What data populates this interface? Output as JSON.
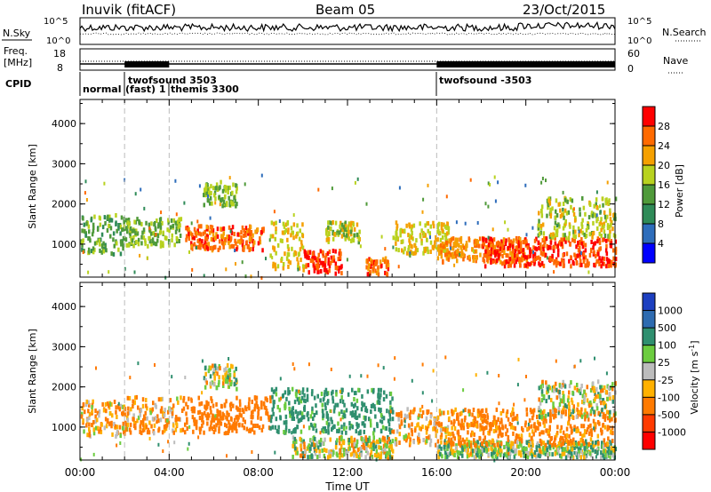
{
  "header": {
    "station": "Inuvik (fitACF)",
    "beam": "Beam 05",
    "date": "23/Oct/2015"
  },
  "status_panels": {
    "nsky": {
      "label": "N.Sky",
      "ticks": [
        "10^5",
        "10^0"
      ],
      "right_label": "N.Search",
      "right_ticks": [
        "10^5",
        "10^0"
      ]
    },
    "freq": {
      "label_line1": "Freq.",
      "label_line2": "[MHz]",
      "ticks": [
        "18",
        "8"
      ],
      "right_label": "Nave",
      "right_ticks": [
        "60",
        "0"
      ]
    },
    "cpid": {
      "label": "CPID",
      "modes": [
        {
          "name": "normal",
          "start_hour": 0.0
        },
        {
          "name": "twofsound 3503",
          "start_hour": 2.0
        },
        {
          "name": "(fast) 1",
          "start_hour": 2.0
        },
        {
          "name": "themis 3300",
          "start_hour": 4.0
        },
        {
          "name": "twofsound -3503",
          "start_hour": 16.0
        }
      ]
    }
  },
  "x_axis": {
    "title": "Time UT",
    "tick_labels": [
      "00:00",
      "04:00",
      "08:00",
      "12:00",
      "16:00",
      "20:00",
      "00:00"
    ],
    "range_hours": [
      0,
      24
    ],
    "mode_change_hours": [
      2,
      4,
      16
    ]
  },
  "power_panel": {
    "ylabel": "Slant Range [km]",
    "y_ticks": [
      "1000",
      "2000",
      "3000",
      "4000"
    ],
    "colorbar_title": "Power [dB]",
    "colorbar_ticks": [
      "4",
      "8",
      "12",
      "16",
      "20",
      "24",
      "28"
    ],
    "colorbar_colors": [
      "#0000ff",
      "#2e6dbb",
      "#2f8b58",
      "#4f9a3a",
      "#b8d21f",
      "#f5a000",
      "#ff6a00",
      "#ff0000"
    ]
  },
  "velocity_panel": {
    "ylabel": "Slant Range [km]",
    "y_ticks": [
      "1000",
      "2000",
      "3000",
      "4000"
    ],
    "colorbar_title": "Velocity  [m s",
    "colorbar_superscript": "-1",
    "colorbar_ticks": [
      "1000",
      "500",
      "100",
      "25",
      "-25",
      "-100",
      "-500",
      "-1000"
    ],
    "colorbar_colors": [
      "#1c3fc0",
      "#2e6bb0",
      "#2f8f6f",
      "#6ccc3f",
      "#bcbcbc",
      "#ffb100",
      "#ff7a00",
      "#ff3a00",
      "#ff0000"
    ]
  },
  "chart_data": {
    "type": "heatmap",
    "title": "Inuvik (fitACF)   Beam 05   23/Oct/2015",
    "xlabel": "Time UT",
    "ylabel": "Slant Range [km]",
    "xlim_hours": [
      0,
      24
    ],
    "ylim_km": [
      180,
      4600
    ],
    "grid": false,
    "mode_changes_hours": [
      2,
      4,
      16
    ],
    "power_scatter_regions": [
      {
        "t0": 0.0,
        "t1": 2.0,
        "r0": 800,
        "r1": 1800,
        "dB": 14
      },
      {
        "t0": 2.0,
        "t1": 4.5,
        "r0": 1000,
        "r1": 1700,
        "dB": 16
      },
      {
        "t0": 4.7,
        "t1": 8.2,
        "r0": 900,
        "r1": 1500,
        "dB": 26
      },
      {
        "t0": 5.5,
        "t1": 7.0,
        "r0": 2000,
        "r1": 2600,
        "dB": 16
      },
      {
        "t0": 8.5,
        "t1": 10.0,
        "r0": 400,
        "r1": 1600,
        "dB": 20
      },
      {
        "t0": 10.0,
        "t1": 11.7,
        "r0": 300,
        "r1": 900,
        "dB": 28
      },
      {
        "t0": 11.0,
        "t1": 12.5,
        "r0": 1100,
        "r1": 1600,
        "dB": 18
      },
      {
        "t0": 12.8,
        "t1": 13.8,
        "r0": 300,
        "r1": 700,
        "dB": 26
      },
      {
        "t0": 14.0,
        "t1": 16.5,
        "r0": 800,
        "r1": 1600,
        "dB": 20
      },
      {
        "t0": 16.0,
        "t1": 20.0,
        "r0": 600,
        "r1": 1200,
        "dB": 24
      },
      {
        "t0": 18.0,
        "t1": 24.0,
        "r0": 500,
        "r1": 1200,
        "dB": 28
      },
      {
        "t0": 20.5,
        "t1": 24.0,
        "r0": 1200,
        "r1": 2200,
        "dB": 18
      }
    ],
    "velocity_scatter_regions": [
      {
        "t0": 0.0,
        "t1": 2.0,
        "r0": 800,
        "r1": 1700,
        "v": -100
      },
      {
        "t0": 2.0,
        "t1": 4.5,
        "r0": 900,
        "r1": 1800,
        "v": -100
      },
      {
        "t0": 4.5,
        "t1": 8.5,
        "r0": 900,
        "r1": 1800,
        "v": -300
      },
      {
        "t0": 5.5,
        "t1": 7.0,
        "r0": 2000,
        "r1": 2600,
        "v": 0
      },
      {
        "t0": 8.5,
        "t1": 14.0,
        "r0": 900,
        "r1": 2000,
        "v": 200
      },
      {
        "t0": 9.5,
        "t1": 14.0,
        "r0": 300,
        "r1": 800,
        "v": 0
      },
      {
        "t0": 14.0,
        "t1": 16.5,
        "r0": 600,
        "r1": 1500,
        "v": -100
      },
      {
        "t0": 16.0,
        "t1": 24.0,
        "r0": 300,
        "r1": 700,
        "v": 50
      },
      {
        "t0": 16.5,
        "t1": 24.0,
        "r0": 600,
        "r1": 1500,
        "v": -200
      },
      {
        "t0": 20.5,
        "t1": 24.0,
        "r0": 1300,
        "r1": 2200,
        "v": 0
      }
    ]
  }
}
